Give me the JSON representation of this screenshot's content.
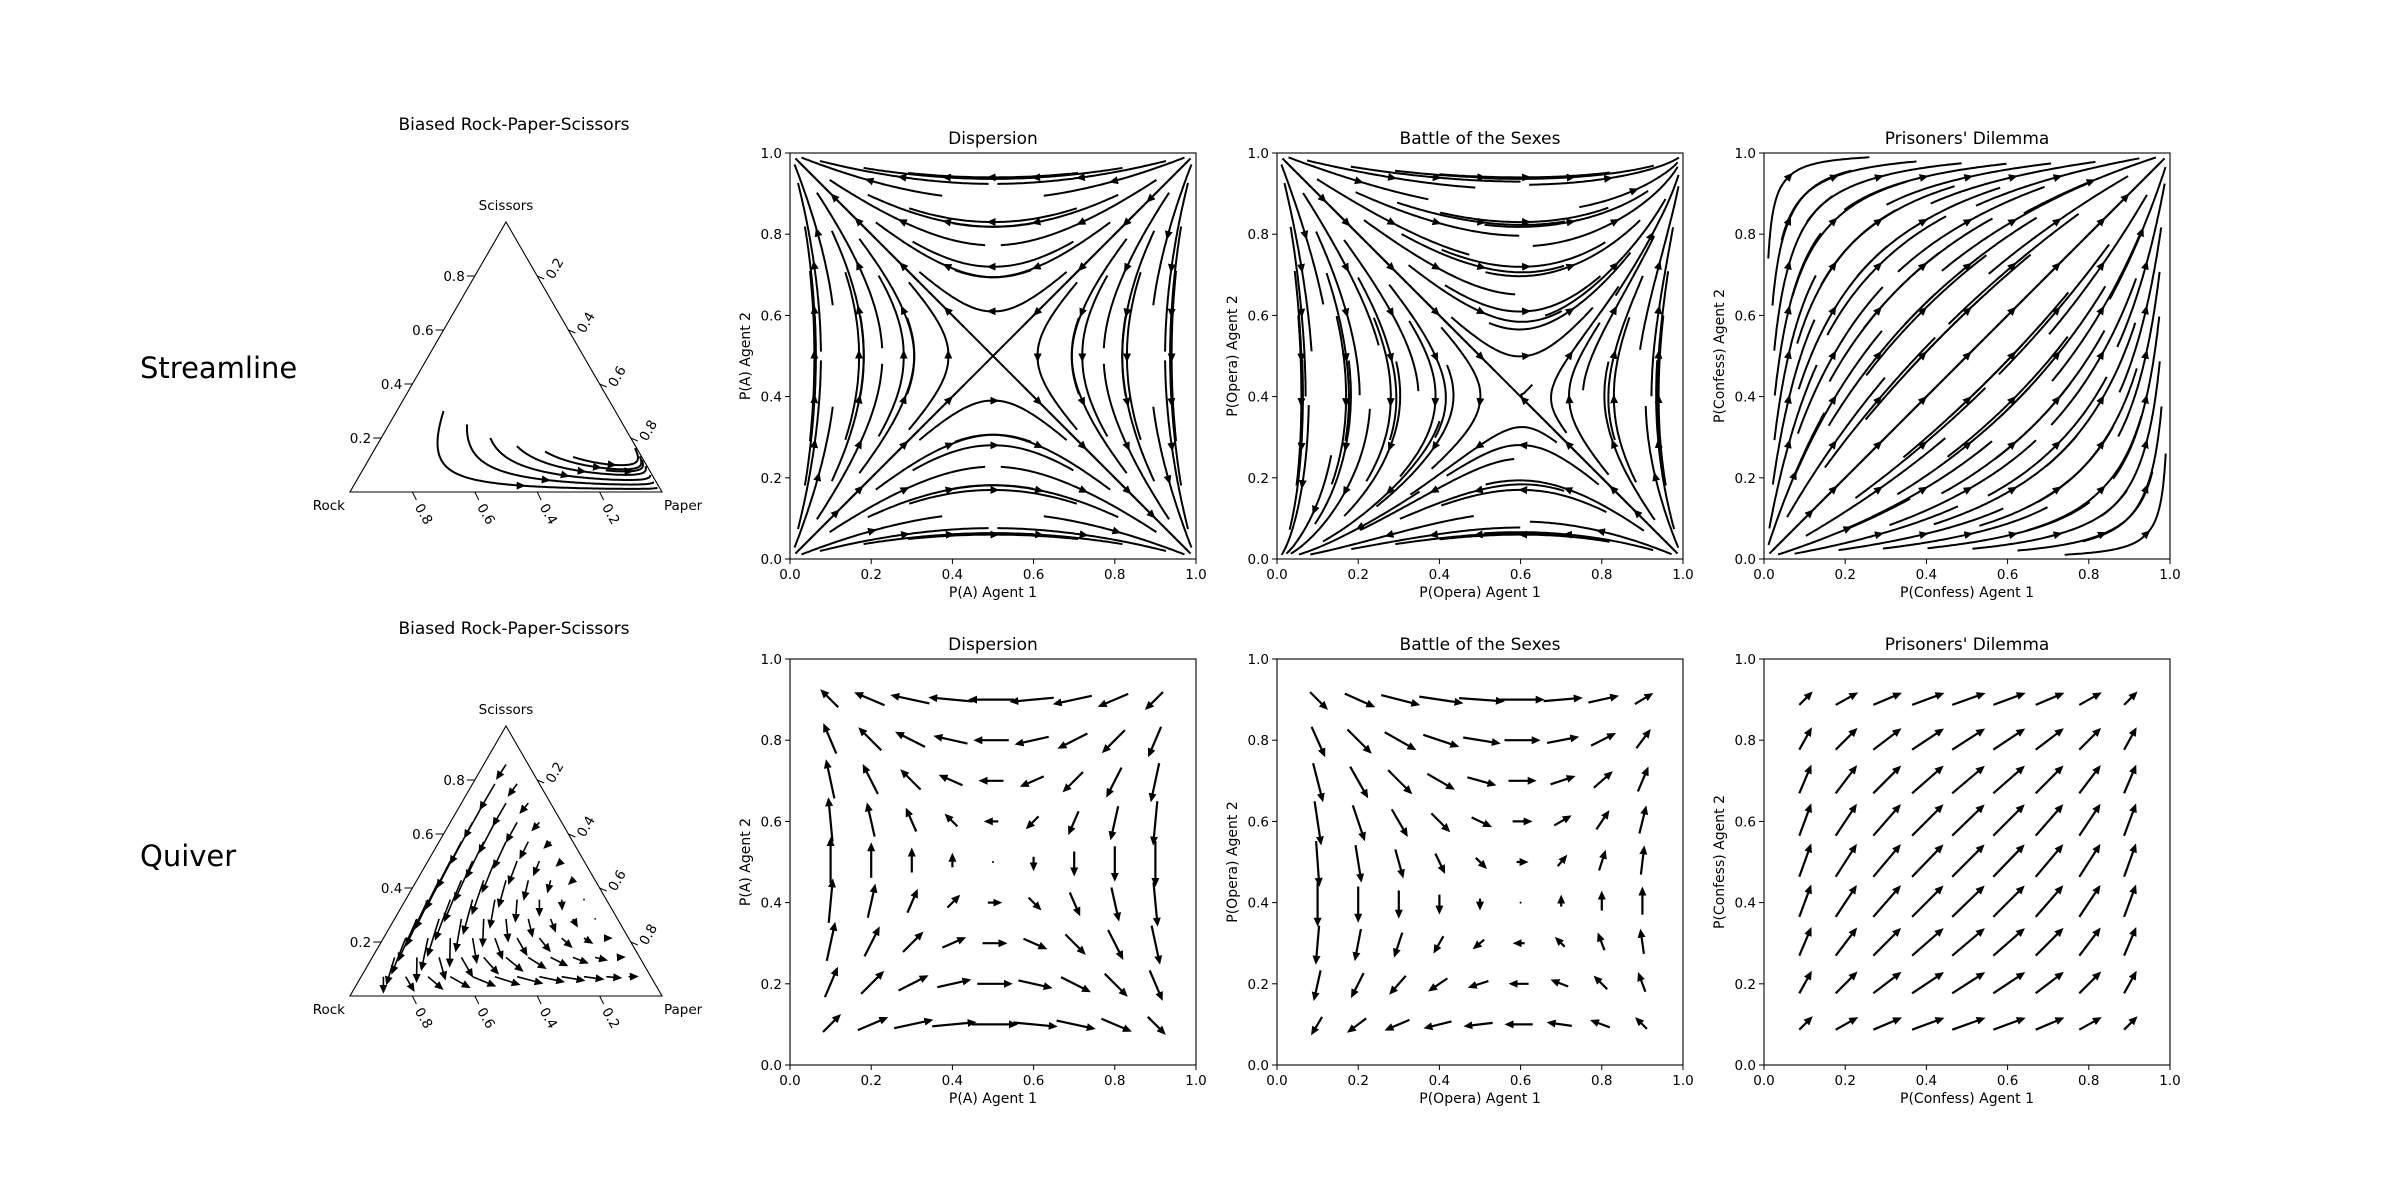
{
  "row_labels": [
    "Streamline",
    "Quiver"
  ],
  "chart_data": [
    {
      "type": "streamline-ternary",
      "row": "Streamline",
      "title": "Biased Rock-Paper-Scissors",
      "corners": {
        "bottom_left": "Rock",
        "bottom_right": "Paper",
        "top": "Scissors"
      },
      "ticks": [
        0.2,
        0.4,
        0.6,
        0.8
      ],
      "tick_labels": [
        "0.2",
        "0.4",
        "0.6",
        "0.8"
      ],
      "field": "biased_rps"
    },
    {
      "type": "streamline",
      "row": "Streamline",
      "title": "Dispersion",
      "xlabel": "P(A) Agent 1",
      "ylabel": "P(A) Agent 2",
      "xlim": [
        0,
        1
      ],
      "ylim": [
        0,
        1
      ],
      "ticks": [
        "0.0",
        "0.2",
        "0.4",
        "0.6",
        "0.8",
        "1.0"
      ],
      "field": "dispersion"
    },
    {
      "type": "streamline",
      "row": "Streamline",
      "title": "Battle of the Sexes",
      "xlabel": "P(Opera) Agent 1",
      "ylabel": "P(Opera) Agent 2",
      "xlim": [
        0,
        1
      ],
      "ylim": [
        0,
        1
      ],
      "ticks": [
        "0.0",
        "0.2",
        "0.4",
        "0.6",
        "0.8",
        "1.0"
      ],
      "field": "battle_of_sexes"
    },
    {
      "type": "streamline",
      "row": "Streamline",
      "title": "Prisoners' Dilemma",
      "xlabel": "P(Confess) Agent 1",
      "ylabel": "P(Confess) Agent 2",
      "xlim": [
        0,
        1
      ],
      "ylim": [
        0,
        1
      ],
      "ticks": [
        "0.0",
        "0.2",
        "0.4",
        "0.6",
        "0.8",
        "1.0"
      ],
      "field": "prisoners_dilemma"
    },
    {
      "type": "quiver-ternary",
      "row": "Quiver",
      "title": "Biased Rock-Paper-Scissors",
      "corners": {
        "bottom_left": "Rock",
        "bottom_right": "Paper",
        "top": "Scissors"
      },
      "ticks": [
        0.2,
        0.4,
        0.6,
        0.8
      ],
      "tick_labels": [
        "0.2",
        "0.4",
        "0.6",
        "0.8"
      ],
      "field": "biased_rps"
    },
    {
      "type": "quiver",
      "row": "Quiver",
      "title": "Dispersion",
      "xlabel": "P(A) Agent 1",
      "ylabel": "P(A) Agent 2",
      "xlim": [
        0,
        1
      ],
      "ylim": [
        0,
        1
      ],
      "ticks": [
        "0.0",
        "0.2",
        "0.4",
        "0.6",
        "0.8",
        "1.0"
      ],
      "field": "dispersion",
      "grid": [
        0.1,
        0.2,
        0.3,
        0.4,
        0.5,
        0.6,
        0.7,
        0.8,
        0.9
      ]
    },
    {
      "type": "quiver",
      "row": "Quiver",
      "title": "Battle of the Sexes",
      "xlabel": "P(Opera) Agent 1",
      "ylabel": "P(Opera) Agent 2",
      "xlim": [
        0,
        1
      ],
      "ylim": [
        0,
        1
      ],
      "ticks": [
        "0.0",
        "0.2",
        "0.4",
        "0.6",
        "0.8",
        "1.0"
      ],
      "field": "battle_of_sexes",
      "grid": [
        0.1,
        0.2,
        0.3,
        0.4,
        0.5,
        0.6,
        0.7,
        0.8,
        0.9
      ]
    },
    {
      "type": "quiver",
      "row": "Quiver",
      "title": "Prisoners' Dilemma",
      "xlabel": "P(Confess) Agent 1",
      "ylabel": "P(Confess) Agent 2",
      "xlim": [
        0,
        1
      ],
      "ylim": [
        0,
        1
      ],
      "ticks": [
        "0.0",
        "0.2",
        "0.4",
        "0.6",
        "0.8",
        "1.0"
      ],
      "field": "prisoners_dilemma",
      "grid": [
        0.1,
        0.2,
        0.3,
        0.4,
        0.5,
        0.6,
        0.7,
        0.8,
        0.9
      ]
    }
  ]
}
